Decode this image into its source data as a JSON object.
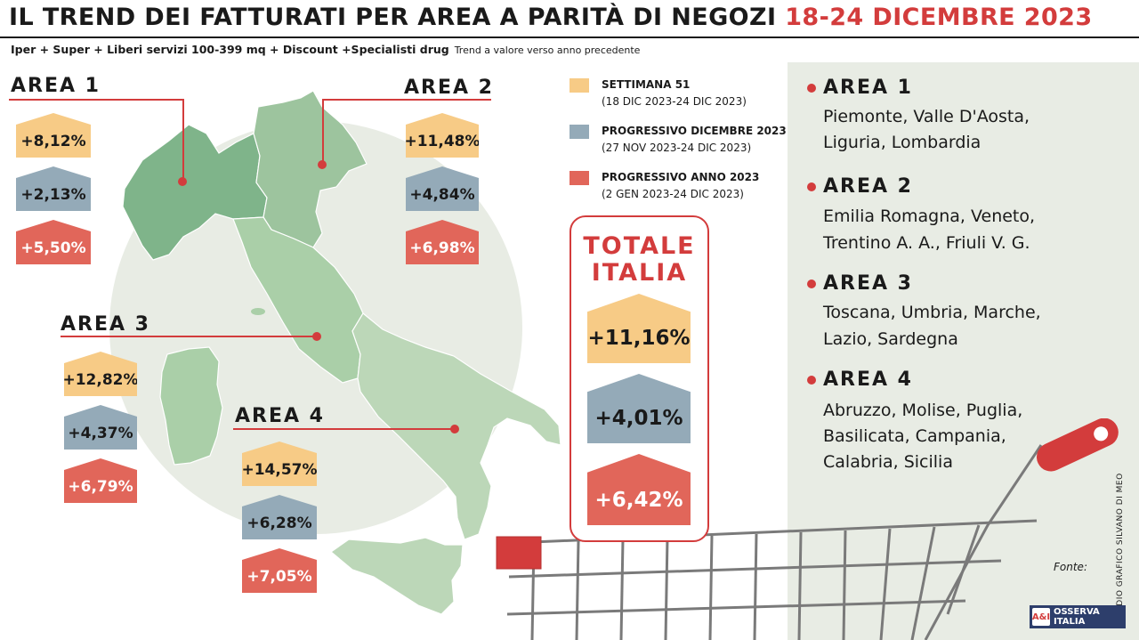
{
  "header": {
    "title": "IL TREND DEI FATTURATI PER AREA A PARITÀ DI NEGOZI",
    "title_date": "18-24 DICEMBRE 2023",
    "subtitle": "Iper + Super + Liberi servizi 100-399 mq + Discount +Specialisti drug",
    "subtitle_note": "Trend a valore verso anno precedente"
  },
  "colors": {
    "settimana": "#f7cb86",
    "progressivo_dicembre": "#94aab8",
    "progressivo_anno": "#e1665a",
    "accent": "#d33c3c",
    "map_north": "#7fb48a",
    "map_south": "#bcd7b8"
  },
  "legend": [
    {
      "title": "SETTIMANA 51",
      "sub": "(18 DIC 2023-24 DIC 2023)"
    },
    {
      "title": "PROGRESSIVO DICEMBRE 2023",
      "sub": "(27 NOV 2023-24 DIC 2023)"
    },
    {
      "title": "PROGRESSIVO ANNO 2023",
      "sub": "(2 GEN 2023-24 DIC 2023)"
    }
  ],
  "areas": [
    {
      "label": "AREA 1",
      "values": [
        "+8,12%",
        "+2,13%",
        "+5,50%"
      ]
    },
    {
      "label": "AREA 2",
      "values": [
        "+11,48%",
        "+4,84%",
        "+6,98%"
      ]
    },
    {
      "label": "AREA 3",
      "values": [
        "+12,82%",
        "+4,37%",
        "+6,79%"
      ]
    },
    {
      "label": "AREA 4",
      "values": [
        "+14,57%",
        "+6,28%",
        "+7,05%"
      ]
    }
  ],
  "totale": {
    "title_line1": "TOTALE",
    "title_line2": "ITALIA",
    "values": [
      "+11,16%",
      "+4,01%",
      "+6,42%"
    ]
  },
  "area_regions": [
    {
      "title": "AREA 1",
      "lines": [
        "Piemonte, Valle D'Aosta,",
        "Liguria, Lombardia"
      ]
    },
    {
      "title": "AREA 2",
      "lines": [
        "Emilia Romagna, Veneto,",
        "Trentino A. A., Friuli V. G."
      ]
    },
    {
      "title": "AREA 3",
      "lines": [
        "Toscana, Umbria, Marche,",
        "Lazio, Sardegna"
      ]
    },
    {
      "title": "AREA 4",
      "lines": [
        "Abruzzo, Molise, Puglia,",
        "Basilicata, Campania,",
        "Calabria, Sicilia"
      ]
    }
  ],
  "chart_data": {
    "type": "table",
    "title": "IL TREND DEI FATTURATI PER AREA A PARITÀ DI NEGOZI 18-24 DICEMBRE 2023",
    "categories": [
      "AREA 1",
      "AREA 2",
      "AREA 3",
      "AREA 4",
      "TOTALE ITALIA"
    ],
    "series": [
      {
        "name": "SETTIMANA 51",
        "values": [
          8.12,
          11.48,
          12.82,
          14.57,
          11.16
        ]
      },
      {
        "name": "PROGRESSIVO DICEMBRE 2023",
        "values": [
          2.13,
          4.84,
          4.37,
          6.28,
          4.01
        ]
      },
      {
        "name": "PROGRESSIVO ANNO 2023",
        "values": [
          5.5,
          6.98,
          6.79,
          7.05,
          6.42
        ]
      }
    ]
  },
  "footer": {
    "fonte": "Fonte:",
    "credit": "STUDIO GRAFICO SILVANO DI MEO",
    "logo_mark": "A&I",
    "logo_text": "OSSERVA ITALIA"
  }
}
